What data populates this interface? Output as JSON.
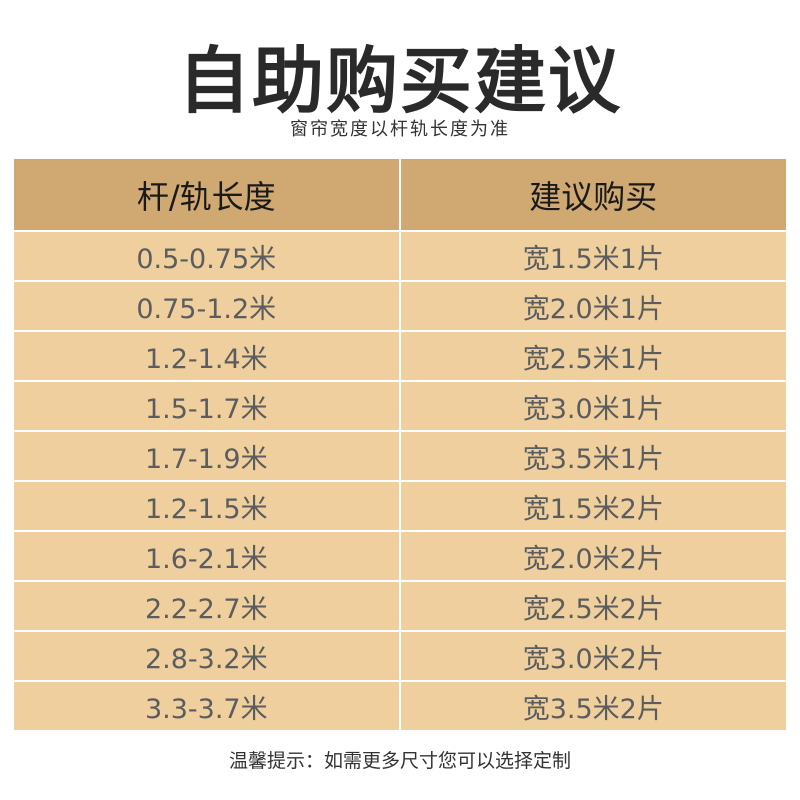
{
  "title": "自助购买建议",
  "subtitle": "窗帘宽度以杆轨长度为准",
  "table": {
    "headers": [
      "杆/轨长度",
      "建议购买"
    ],
    "rows": [
      [
        "0.5-0.75米",
        "宽1.5米1片"
      ],
      [
        "0.75-1.2米",
        "宽2.0米1片"
      ],
      [
        "1.2-1.4米",
        "宽2.5米1片"
      ],
      [
        "1.5-1.7米",
        "宽3.0米1片"
      ],
      [
        "1.7-1.9米",
        "宽3.5米1片"
      ],
      [
        "1.2-1.5米",
        "宽1.5米2片"
      ],
      [
        "1.6-2.1米",
        "宽2.0米2片"
      ],
      [
        "2.2-2.7米",
        "宽2.5米2片"
      ],
      [
        "2.8-3.2米",
        "宽3.0米2片"
      ],
      [
        "3.3-3.7米",
        "宽3.5米2片"
      ]
    ]
  },
  "tip": "温馨提示：如需更多尺寸您可以选择定制",
  "colors": {
    "header": "#cfa872",
    "row": "#efcf9e"
  }
}
